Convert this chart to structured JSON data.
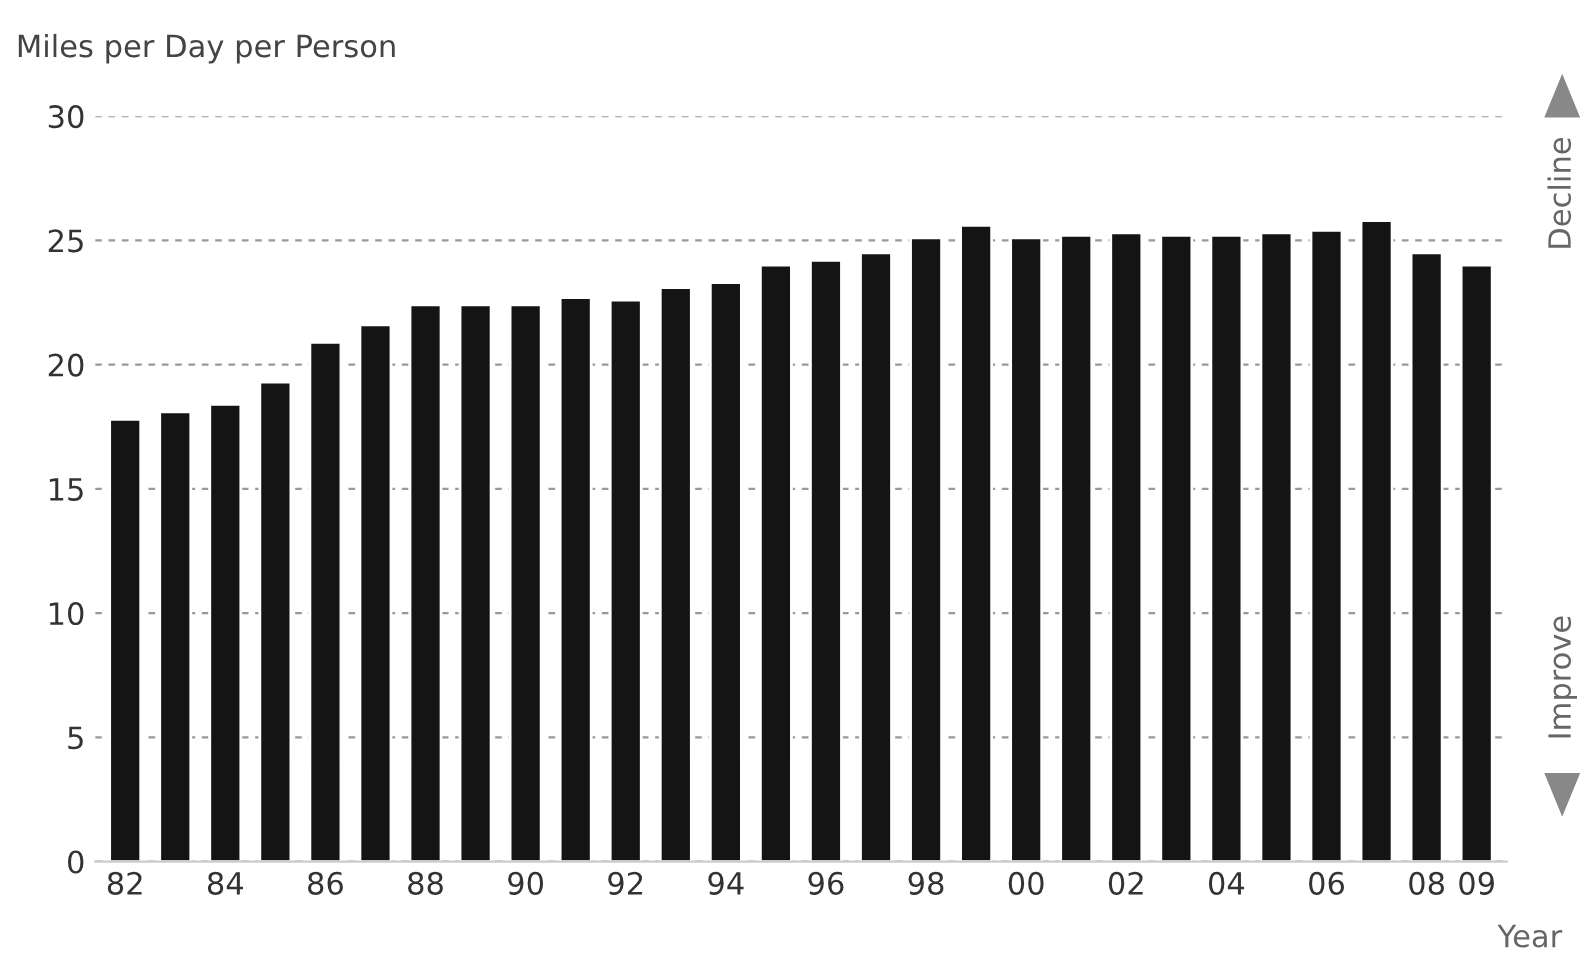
{
  "chart_data": {
    "type": "bar",
    "ylabel": "Miles per Day per Person",
    "xlabel": "Year",
    "categories": [
      "82",
      null,
      "84",
      null,
      "86",
      null,
      "88",
      null,
      "90",
      null,
      "92",
      null,
      "94",
      null,
      "96",
      null,
      "98",
      null,
      "00",
      null,
      "02",
      null,
      "04",
      null,
      "06",
      null,
      "08",
      "09"
    ],
    "values": [
      17.8,
      18.1,
      18.4,
      19.3,
      20.9,
      21.6,
      22.4,
      22.4,
      22.4,
      22.7,
      22.6,
      23.1,
      23.3,
      24.0,
      24.2,
      24.5,
      25.1,
      25.6,
      25.1,
      25.2,
      25.3,
      25.2,
      25.2,
      25.3,
      25.4,
      25.8,
      24.5,
      24.0
    ],
    "color": "#141414",
    "ylim": [
      0,
      30
    ],
    "yticks": [
      0,
      5,
      10,
      15,
      20,
      25,
      30
    ],
    "grid": "y",
    "annotations": [
      "Decline",
      "Improve"
    ]
  }
}
